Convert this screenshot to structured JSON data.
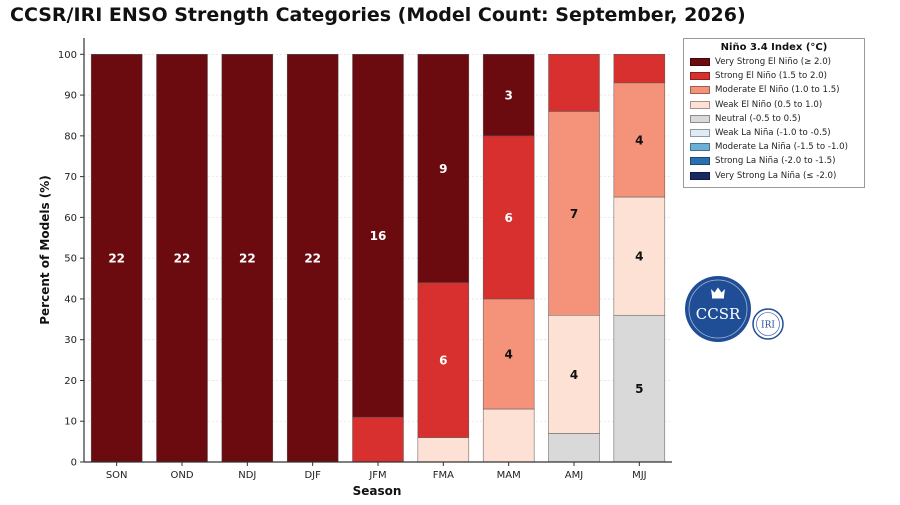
{
  "title": "CCSR/IRI ENSO Strength Categories (Model Count: September, 2026)",
  "legend": {
    "title": "Niño 3.4 Index (°C)",
    "placement": "top-right",
    "entries": [
      {
        "label": "Very Strong El Niño (≥ 2.0)",
        "color": "#6b0a0f"
      },
      {
        "label": "Strong El Niño (1.5 to 2.0)",
        "color": "#d7302e"
      },
      {
        "label": "Moderate El Niño (1.0 to 1.5)",
        "color": "#f4937a"
      },
      {
        "label": "Weak El Niño (0.5 to 1.0)",
        "color": "#fde1d5"
      },
      {
        "label": "Neutral (-0.5 to 0.5)",
        "color": "#d9d9d9"
      },
      {
        "label": "Weak La Niña (-1.0 to -0.5)",
        "color": "#dfeaf5"
      },
      {
        "label": "Moderate La Niña (-1.5 to -1.0)",
        "color": "#6baed6"
      },
      {
        "label": "Strong La Niña (-2.0 to -1.5)",
        "color": "#2b6fb3"
      },
      {
        "label": "Very Strong La Niña (≤ -2.0)",
        "color": "#1a2b63"
      }
    ]
  },
  "logo": {
    "main_text": "CCSR",
    "badge_text": "IRI",
    "color": "#1f4e96"
  },
  "chart_data": {
    "type": "bar",
    "stacked": true,
    "title": "CCSR/IRI ENSO Strength Categories (Model Count: September, 2026)",
    "xlabel": "Season",
    "ylabel": "Percent of Models (%)",
    "ylim": [
      0,
      104
    ],
    "yticks": [
      0,
      10,
      20,
      30,
      40,
      50,
      60,
      70,
      80,
      90,
      100
    ],
    "grid": true,
    "legend_position": "top-right",
    "categories": [
      "SON",
      "OND",
      "NDJ",
      "DJF",
      "JFM",
      "FMA",
      "MAM",
      "AMJ",
      "MJJ"
    ],
    "series": [
      {
        "name": "Neutral (-0.5 to 0.5)",
        "color": "#d9d9d9",
        "text_color": "#111111",
        "values": [
          0,
          0,
          0,
          0,
          0,
          0,
          0,
          7,
          36
        ],
        "labels": [
          "",
          "",
          "",
          "",
          "",
          "",
          "",
          "",
          "5"
        ]
      },
      {
        "name": "Weak El Niño (0.5 to 1.0)",
        "color": "#fde1d5",
        "text_color": "#111111",
        "values": [
          0,
          0,
          0,
          0,
          0,
          6,
          13,
          29,
          29
        ],
        "labels": [
          "",
          "",
          "",
          "",
          "",
          "",
          "",
          "4",
          "4"
        ]
      },
      {
        "name": "Moderate El Niño (1.0 to 1.5)",
        "color": "#f4937a",
        "text_color": "#111111",
        "values": [
          0,
          0,
          0,
          0,
          0,
          0,
          27,
          50,
          28
        ],
        "labels": [
          "",
          "",
          "",
          "",
          "",
          "",
          "4",
          "7",
          "4"
        ]
      },
      {
        "name": "Strong El Niño (1.5 to 2.0)",
        "color": "#d7302e",
        "text_color": "#ffffff",
        "values": [
          0,
          0,
          0,
          0,
          11,
          38,
          40,
          14,
          7
        ],
        "labels": [
          "",
          "",
          "",
          "",
          "",
          "6",
          "6",
          "",
          ""
        ]
      },
      {
        "name": "Very Strong El Niño (≥ 2.0)",
        "color": "#6b0a0f",
        "text_color": "#ffffff",
        "values": [
          100,
          100,
          100,
          100,
          89,
          56,
          20,
          0,
          0
        ],
        "labels": [
          "22",
          "22",
          "22",
          "22",
          "16",
          "9",
          "3",
          "",
          ""
        ]
      }
    ]
  }
}
